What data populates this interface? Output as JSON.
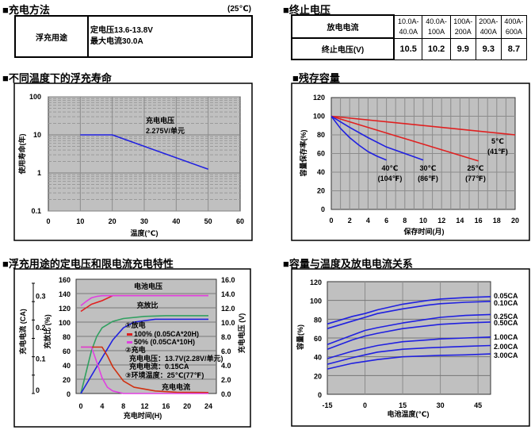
{
  "charge_method": {
    "title": "■充电方法",
    "temp_note": "(25℃)",
    "row_label": "浮充用途",
    "line1": "定电压13.6-13.8V",
    "line2": "最大电流30.0A"
  },
  "cutoff_voltage": {
    "title": "■终止电压",
    "row1_label": "放电电流",
    "row2_label": "终止电压(V)",
    "currents": [
      [
        "10.0A-",
        "40.0A"
      ],
      [
        "40.0A-",
        "100A"
      ],
      [
        "100A-",
        "200A"
      ],
      [
        "200A-",
        "400A"
      ],
      [
        "400A-",
        "600A"
      ]
    ],
    "voltages": [
      "10.5",
      "10.2",
      "9.9",
      "9.3",
      "8.7"
    ]
  },
  "colors": {
    "plot_bg": "#c0c0c0",
    "grid": "#8c8c8c",
    "blue": "#2020e0",
    "red": "#e02020",
    "magenta": "#e040e0",
    "green": "#30a060",
    "orange_red": "#d03010"
  },
  "chart_data": [
    {
      "id": "float-life",
      "title": "■不同温度下的浮充寿命",
      "type": "line",
      "xlabel": "温度(℃)",
      "ylabel": "使用寿命(年)",
      "xlim": [
        0,
        60
      ],
      "ylim": [
        0.1,
        100
      ],
      "yscale": "log",
      "grid": true,
      "xticks": [
        "0",
        "10",
        "20",
        "30",
        "40",
        "50",
        "60"
      ],
      "yticks": [
        "0.1",
        "1",
        "10",
        "100"
      ],
      "annotation": [
        "充电电压",
        "2.275V/单元"
      ],
      "series": [
        {
          "x": [
            10,
            20,
            50
          ],
          "y": [
            10,
            10,
            1.25
          ],
          "color": "#2020e0"
        }
      ]
    },
    {
      "id": "residual-capacity",
      "title": "■残存容量",
      "type": "line",
      "xlabel": "保存时间(月)",
      "ylabel": "容量保存率(%)",
      "xlim": [
        0,
        20
      ],
      "ylim": [
        0,
        120
      ],
      "grid": true,
      "xticks": [
        "0",
        "2",
        "4",
        "6",
        "8",
        "10",
        "12",
        "14",
        "16",
        "18",
        "20"
      ],
      "yticks": [
        "0",
        "20",
        "40",
        "60",
        "80",
        "100",
        "120"
      ],
      "series": [
        {
          "name": "5℃",
          "name2": "(41℉)",
          "color": "#e02020",
          "x": [
            0,
            20
          ],
          "y": [
            100,
            80
          ]
        },
        {
          "name": "25℃",
          "name2": "(77℉)",
          "color": "#e02020",
          "x": [
            0,
            16
          ],
          "y": [
            100,
            52
          ]
        },
        {
          "name": "30℃",
          "name2": "(86℉)",
          "color": "#2020e0",
          "x": [
            0,
            1,
            2,
            4,
            6,
            8,
            10
          ],
          "y": [
            100,
            94,
            88,
            77,
            67,
            60,
            53
          ]
        },
        {
          "name": "40℃",
          "name2": "(104℉)",
          "color": "#2020e0",
          "x": [
            0,
            1,
            2,
            3,
            4,
            5,
            6
          ],
          "y": [
            100,
            87,
            77,
            69,
            62,
            57,
            53
          ]
        }
      ]
    },
    {
      "id": "float-charge-characteristics",
      "title": "■浮充用途的定电压和限电流充电特性",
      "type": "line",
      "xlabel": "充电时间(H)",
      "ylabel_left_current": "充电电流 (CA)",
      "ylabel_left_ratio": "充放比 (%)",
      "ylabel_right": "充电电压 (V)",
      "xlim": [
        0,
        24
      ],
      "ylim_ratio": [
        0,
        160
      ],
      "ylim_voltage": [
        0,
        16
      ],
      "ylim_current": [
        0,
        0.364
      ],
      "grid": true,
      "xticks": [
        "0",
        "4",
        "8",
        "12",
        "16",
        "20",
        "24"
      ],
      "yticks_ratio": [
        "0",
        "20",
        "40",
        "60",
        "80",
        "100",
        "120",
        "140",
        "160"
      ],
      "yticks_voltage": [
        "0.0",
        "2.0",
        "4.0",
        "6.0",
        "8.0",
        "10.0",
        "12.0",
        "14.0",
        "16.0"
      ],
      "yticks_current": [
        "0",
        "0.1",
        "0.2",
        "0.3"
      ],
      "labels": {
        "voltage": "电池电压",
        "ratio": "充放比",
        "current": "充电电流"
      },
      "legend": {
        "discharge": "①放电",
        "d100": "100% (0.05CA*20H)",
        "d50": "50% (0.05CA*10H)",
        "charge": "②充电",
        "charge_voltage": "充电电压：13.7V(2.28V/单元)",
        "charge_current": "充电电流：0.15CA",
        "ambient": "③环境温度：25℃(77℉)"
      },
      "series": [
        {
          "kind": "voltage",
          "after": "100%",
          "color": "#e02020",
          "x": [
            0,
            1,
            2,
            4,
            6,
            24
          ],
          "y": [
            11.5,
            12.0,
            12.5,
            13.0,
            13.7,
            13.7
          ]
        },
        {
          "kind": "voltage",
          "after": "50%",
          "color": "#e040e0",
          "x": [
            0,
            1,
            2,
            3,
            4,
            24
          ],
          "y": [
            12.3,
            12.9,
            13.4,
            13.6,
            13.7,
            13.7
          ]
        },
        {
          "kind": "ratio",
          "after": "50%",
          "color": "#30a060",
          "x": [
            0,
            1,
            2,
            3,
            4,
            6,
            8,
            12,
            16,
            24
          ],
          "y": [
            0,
            30,
            60,
            80,
            92,
            101,
            105,
            108,
            109,
            109
          ]
        },
        {
          "kind": "ratio",
          "after": "100%",
          "color": "#2020e0",
          "x": [
            0,
            2,
            4,
            6,
            8,
            10,
            14,
            24
          ],
          "y": [
            0,
            25,
            50,
            75,
            92,
            100,
            104,
            104
          ]
        },
        {
          "kind": "current",
          "after": "100%",
          "color": "#d03010",
          "x": [
            0,
            4,
            5,
            6,
            8,
            10,
            14,
            18,
            24
          ],
          "y": [
            0.148,
            0.148,
            0.12,
            0.085,
            0.04,
            0.02,
            0.008,
            0.004,
            0.003
          ]
        },
        {
          "kind": "current",
          "after": "50%",
          "color": "#e040e0",
          "x": [
            0,
            2,
            3,
            4,
            5,
            6,
            8,
            24
          ],
          "y": [
            0.148,
            0.148,
            0.1,
            0.05,
            0.02,
            0.008,
            0,
            0
          ]
        }
      ]
    },
    {
      "id": "capacity-vs-temperature",
      "title": "■容量与温度及放电电流关系",
      "type": "line",
      "xlabel": "电池温度(℃)",
      "ylabel": "容量(%)",
      "xlim": [
        -15,
        50
      ],
      "ylim": [
        0,
        120
      ],
      "grid": true,
      "xticks": [
        "-15",
        "0",
        "15",
        "30",
        "45"
      ],
      "yticks": [
        "0",
        "20",
        "40",
        "60",
        "80",
        "100",
        "120"
      ],
      "series": [
        {
          "name": "0.05CA",
          "x": [
            -15,
            -5,
            0,
            5,
            15,
            25,
            30,
            40,
            50
          ],
          "y": [
            75,
            83,
            86,
            90,
            96,
            100,
            101.5,
            103,
            104
          ]
        },
        {
          "name": "0.10CA",
          "x": [
            -15,
            -5,
            0,
            5,
            15,
            25,
            30,
            40,
            50
          ],
          "y": [
            70,
            78,
            82,
            86,
            91,
            95,
            96.5,
            98,
            99
          ]
        },
        {
          "name": "0.25CA",
          "x": [
            -15,
            -5,
            0,
            5,
            15,
            25,
            30,
            40,
            50
          ],
          "y": [
            53,
            63,
            68,
            71,
            76,
            80,
            82,
            84,
            85
          ]
        },
        {
          "name": "0.50CA",
          "x": [
            -15,
            -5,
            0,
            5,
            15,
            25,
            30,
            40,
            50
          ],
          "y": [
            48,
            58,
            62,
            65,
            70,
            73,
            74.5,
            76,
            77
          ]
        },
        {
          "name": "1.00CA",
          "x": [
            -15,
            -5,
            0,
            5,
            15,
            25,
            30,
            40,
            50
          ],
          "y": [
            38,
            46,
            49,
            52,
            56,
            58,
            59,
            60,
            61
          ]
        },
        {
          "name": "2.00CA",
          "x": [
            -15,
            -5,
            0,
            5,
            15,
            25,
            30,
            40,
            50
          ],
          "y": [
            32,
            39,
            42,
            45,
            48,
            49.5,
            50,
            51,
            52
          ]
        },
        {
          "name": "3.00CA",
          "x": [
            -15,
            -5,
            0,
            5,
            15,
            25,
            30,
            40,
            50
          ],
          "y": [
            27,
            33,
            35,
            37,
            40,
            41,
            41.5,
            42,
            43
          ]
        }
      ]
    }
  ]
}
